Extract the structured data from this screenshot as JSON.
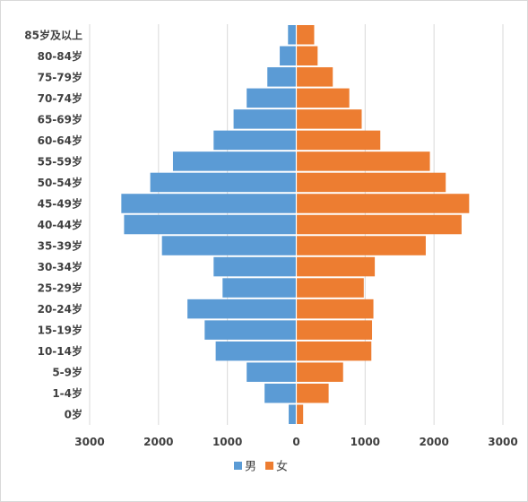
{
  "chart_data": {
    "type": "bar",
    "orientation": "horizontal",
    "layout": "population-pyramid",
    "title": "",
    "xlabel": "",
    "ylabel": "",
    "categories": [
      "85岁及以上",
      "80-84岁",
      "75-79岁",
      "70-74岁",
      "65-69岁",
      "60-64岁",
      "55-59岁",
      "50-54岁",
      "45-49岁",
      "40-44岁",
      "35-39岁",
      "30-34岁",
      "25-29岁",
      "20-24岁",
      "15-19岁",
      "10-14岁",
      "5-9岁",
      "1-4岁",
      "0岁"
    ],
    "series": [
      {
        "name": "男",
        "color": "#5B9BD5",
        "side": "left",
        "values": [
          120,
          240,
          420,
          720,
          910,
          1200,
          1790,
          2120,
          2540,
          2500,
          1950,
          1200,
          1070,
          1580,
          1330,
          1170,
          720,
          460,
          110
        ]
      },
      {
        "name": "女",
        "color": "#ED7D31",
        "side": "right",
        "values": [
          260,
          310,
          530,
          770,
          950,
          1220,
          1940,
          2170,
          2510,
          2400,
          1880,
          1140,
          980,
          1120,
          1100,
          1090,
          680,
          470,
          100
        ]
      }
    ],
    "xlim": [
      -3000,
      3000
    ],
    "x_ticks": [
      -3000,
      -2000,
      -1000,
      0,
      1000,
      2000,
      3000
    ],
    "x_tick_labels": [
      "3000",
      "2000",
      "1000",
      "0",
      "1000",
      "2000",
      "3000"
    ],
    "grid": "vertical",
    "legend": "bottom"
  }
}
